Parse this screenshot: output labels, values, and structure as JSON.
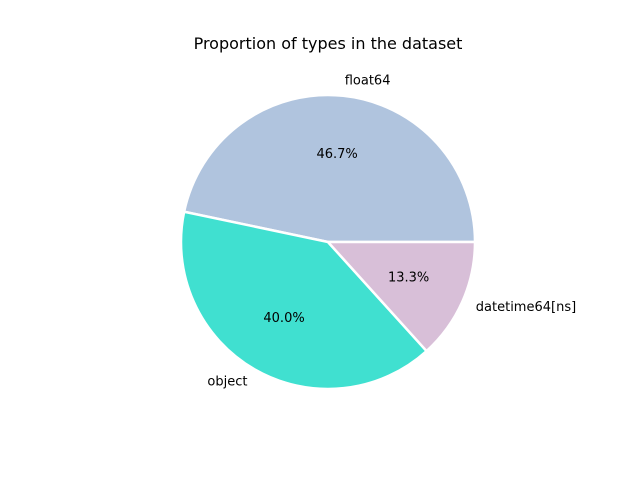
{
  "chart_data": {
    "type": "pie",
    "title": "Proportion of types in the dataset",
    "slices": [
      {
        "label": "float64",
        "value": 46.7,
        "pct_text": "46.7%",
        "color": "#B0C4DE"
      },
      {
        "label": "object",
        "value": 40.0,
        "pct_text": "40.0%",
        "color": "#40E0D0"
      },
      {
        "label": "datetime64[ns]",
        "value": 13.3,
        "pct_text": "13.3%",
        "color": "#D8BFD8"
      }
    ],
    "start_angle_deg": 0,
    "direction": "counterclockwise",
    "edge_color": "#FFFFFF",
    "legend": "none"
  }
}
